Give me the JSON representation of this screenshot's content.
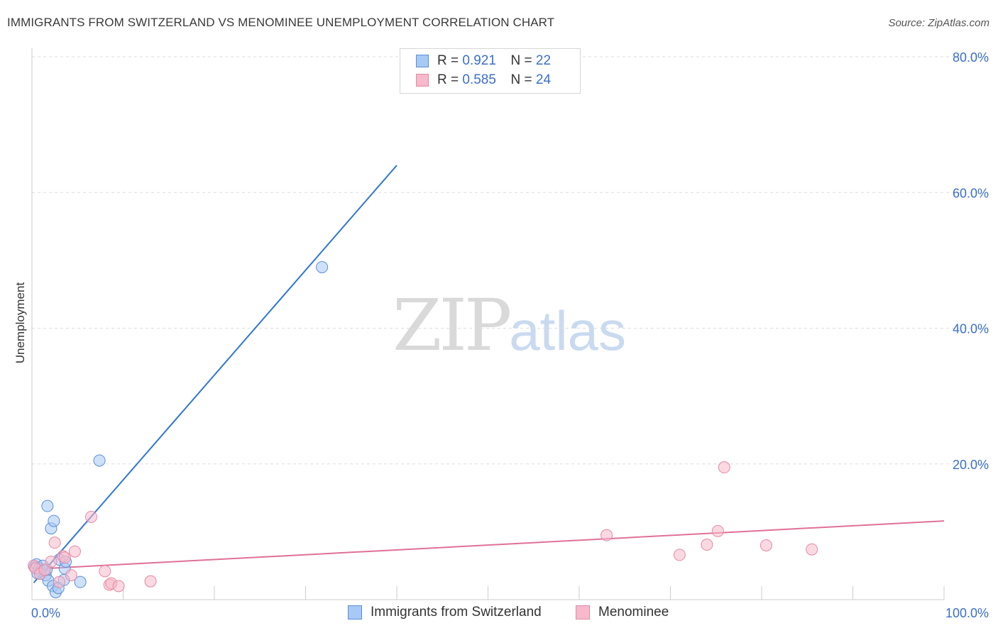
{
  "header": {
    "title": "IMMIGRANTS FROM SWITZERLAND VS MENOMINEE UNEMPLOYMENT CORRELATION CHART",
    "source": "Source: ZipAtlas.com"
  },
  "watermark": {
    "zip": "ZIP",
    "atlas": "atlas"
  },
  "legend": {
    "rows": [
      {
        "r_label": "R =",
        "r_value": "0.921",
        "n_label": "N =",
        "n_value": "22",
        "color": "#a8c8f5"
      },
      {
        "r_label": "R =",
        "r_value": "0.585",
        "n_label": "N =",
        "n_value": "24",
        "color": "#f7b9cb"
      }
    ]
  },
  "bottom_legend": [
    {
      "label": "Immigrants from Switzerland",
      "color": "#a8c8f5"
    },
    {
      "label": "Menominee",
      "color": "#f7b9cb"
    }
  ],
  "chart_data": {
    "type": "scatter",
    "title": "IMMIGRANTS FROM SWITZERLAND VS MENOMINEE UNEMPLOYMENT CORRELATION CHART",
    "xlabel": "",
    "ylabel": "Unemployment",
    "xlim": [
      0,
      100
    ],
    "ylim": [
      0,
      80
    ],
    "x_ticks": [
      "0.0%",
      "100.0%"
    ],
    "y_ticks": [
      "20.0%",
      "40.0%",
      "60.0%",
      "80.0%"
    ],
    "grid": true,
    "legend_position": "top-center",
    "series": [
      {
        "name": "Immigrants from Switzerland",
        "color": "#a8c8f5",
        "stroke": "#5b8fd6",
        "line_color": "#2f76d0",
        "points": [
          [
            0.3,
            4.8
          ],
          [
            0.5,
            5.2
          ],
          [
            0.8,
            4.6
          ],
          [
            1.0,
            4.2
          ],
          [
            1.2,
            5.0
          ],
          [
            1.5,
            3.6
          ],
          [
            1.6,
            4.4
          ],
          [
            1.8,
            2.8
          ],
          [
            1.7,
            13.8
          ],
          [
            2.1,
            10.5
          ],
          [
            2.4,
            11.6
          ],
          [
            2.3,
            2.0
          ],
          [
            2.6,
            1.1
          ],
          [
            2.9,
            1.7
          ],
          [
            3.0,
            5.9
          ],
          [
            3.6,
            4.6
          ],
          [
            3.5,
            2.9
          ],
          [
            3.7,
            5.6
          ],
          [
            5.3,
            2.6
          ],
          [
            7.4,
            20.5
          ],
          [
            31.8,
            49.0
          ],
          [
            0.6,
            3.9
          ]
        ],
        "trend": {
          "x": [
            0.2,
            40.0
          ],
          "y": [
            2.5,
            64.0
          ]
        }
      },
      {
        "name": "Menominee",
        "color": "#f7b9cb",
        "stroke": "#e48aa5",
        "line_color": "#e07098",
        "points": [
          [
            0.2,
            5.0
          ],
          [
            0.4,
            4.6
          ],
          [
            0.9,
            3.8
          ],
          [
            1.4,
            4.4
          ],
          [
            2.1,
            5.6
          ],
          [
            2.5,
            8.4
          ],
          [
            3.0,
            2.6
          ],
          [
            3.4,
            6.4
          ],
          [
            3.6,
            6.2
          ],
          [
            4.3,
            3.6
          ],
          [
            4.7,
            7.1
          ],
          [
            6.5,
            12.2
          ],
          [
            8.0,
            4.2
          ],
          [
            8.5,
            2.2
          ],
          [
            8.7,
            2.4
          ],
          [
            9.5,
            2.0
          ],
          [
            13.0,
            2.7
          ],
          [
            63.0,
            9.5
          ],
          [
            71.0,
            6.6
          ],
          [
            74.0,
            8.1
          ],
          [
            75.2,
            10.1
          ],
          [
            75.9,
            19.5
          ],
          [
            80.5,
            8.0
          ],
          [
            85.5,
            7.4
          ]
        ],
        "trend": {
          "x": [
            0.2,
            100.0
          ],
          "y": [
            4.5,
            11.6
          ]
        }
      }
    ]
  }
}
